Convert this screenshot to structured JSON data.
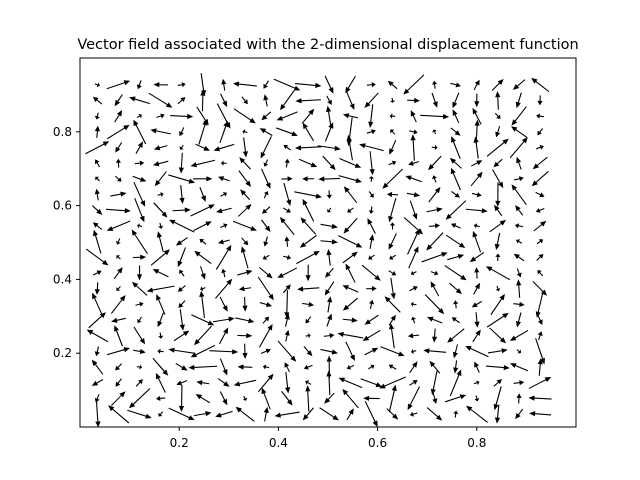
{
  "chart_data": {
    "type": "quiver",
    "title": "Vector field associated with the 2-dimensional displacement function",
    "xlabel": "",
    "ylabel": "",
    "xlim": [
      0.0,
      1.0
    ],
    "ylim": [
      0.0,
      1.0
    ],
    "xticks": [
      0.2,
      0.4,
      0.6,
      0.8
    ],
    "xtick_labels": [
      "0.2",
      "0.4",
      "0.6",
      "0.8"
    ],
    "yticks": [
      0.2,
      0.4,
      0.6,
      0.8
    ],
    "ytick_labels": [
      "0.2",
      "0.4",
      "0.6",
      "0.8"
    ],
    "grid": false,
    "legend": "none",
    "arrow_color": "#000000",
    "grid_points": {
      "x_start": 0.035,
      "x_step": 0.0425,
      "x_count": 22,
      "y_start": 0.035,
      "y_step": 0.0425,
      "y_count": 22,
      "seed": 7
    }
  }
}
